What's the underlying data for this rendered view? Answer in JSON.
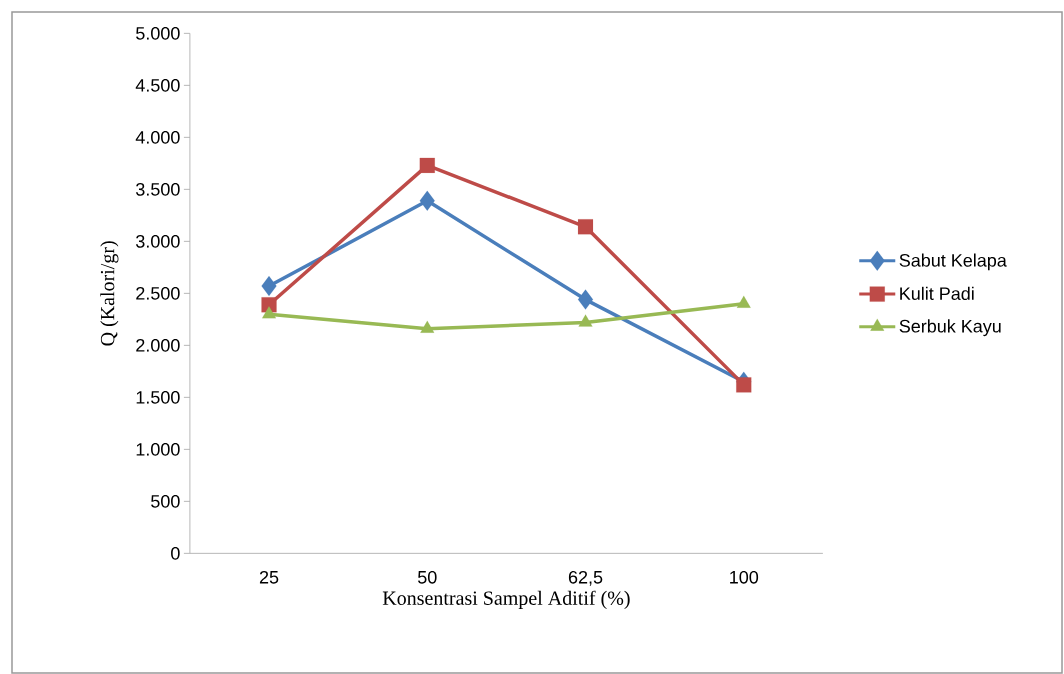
{
  "chart_data": {
    "type": "line",
    "xlabel": "Konsentrasi Sampel Aditif (%)",
    "ylabel": "Q  (Kalori/gr)",
    "categories": [
      "25",
      "50",
      "62,5",
      "100"
    ],
    "series": [
      {
        "name": "Sabut Kelapa",
        "color": "#4a7ebb",
        "marker": "diamond",
        "values": [
          2570,
          3390,
          2440,
          1650
        ]
      },
      {
        "name": "Kulit Padi",
        "color": "#be4b48",
        "marker": "square",
        "values": [
          2390,
          3730,
          3140,
          1620
        ]
      },
      {
        "name": "Serbuk Kayu",
        "color": "#98b954",
        "marker": "triangle",
        "values": [
          2300,
          2160,
          2220,
          2400
        ]
      }
    ],
    "ylim": [
      0,
      5000
    ],
    "yticks": [
      {
        "value": 0,
        "label": "0"
      },
      {
        "value": 500,
        "label": "500"
      },
      {
        "value": 1000,
        "label": "1.000"
      },
      {
        "value": 1500,
        "label": "1.500"
      },
      {
        "value": 2000,
        "label": "2.000"
      },
      {
        "value": 2500,
        "label": "2.500"
      },
      {
        "value": 3000,
        "label": "3.000"
      },
      {
        "value": 3500,
        "label": "3.500"
      },
      {
        "value": 4000,
        "label": "4.000"
      },
      {
        "value": 4500,
        "label": "4.500"
      },
      {
        "value": 5000,
        "label": "5.000"
      }
    ],
    "grid": false,
    "legend": "right"
  }
}
